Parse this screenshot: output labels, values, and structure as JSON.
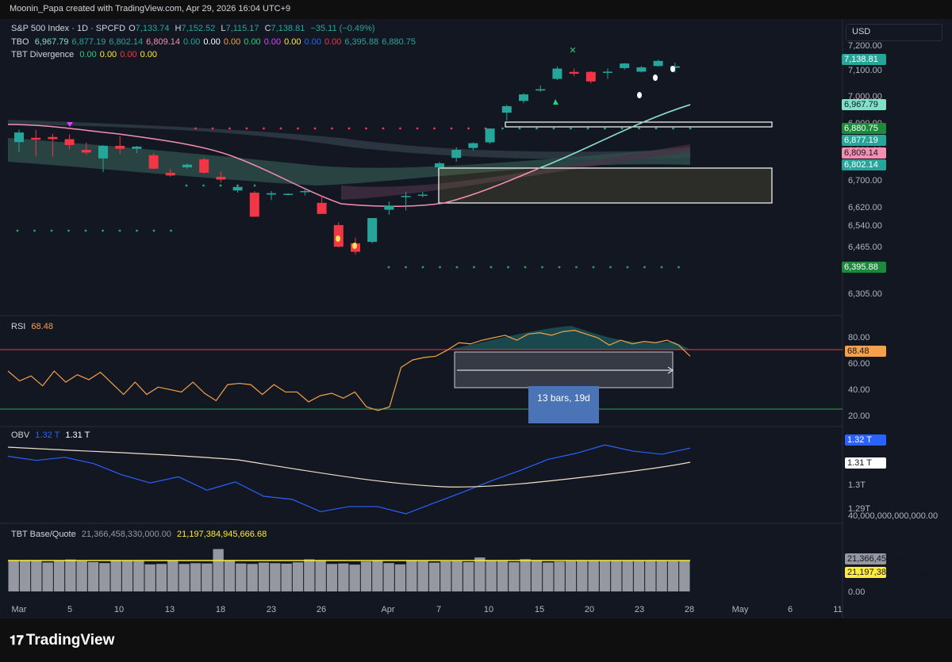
{
  "header": {
    "credit": "Moonin_Papa created with TradingView.com, Apr 29, 2026 16:04 UTC+9"
  },
  "footer": {
    "logo_text": "TradingView"
  },
  "currency_selector": {
    "label": "USD"
  },
  "colors": {
    "up": "#26a69a",
    "down": "#f23645",
    "bg": "#131722",
    "rsi": "#f5a04a",
    "obv": "#2962ff",
    "obv_ma": "#f0e0c8",
    "volume": "#9598a1",
    "quote": "#ffeb3b"
  },
  "legends": {
    "main": {
      "symbol": "S&P 500 Index · 1D · SPCFD",
      "o_label": "O",
      "o": "7,133.74",
      "h_label": "H",
      "h": "7,152.52",
      "l_label": "L",
      "l": "7,115.17",
      "c_label": "C",
      "c": "7,138.81",
      "chg": "−35.11 (−0.49%)"
    },
    "tbo": {
      "name": "TBO",
      "values": [
        "6,967.79",
        "6,877.19",
        "6,802.14",
        "6,809.14",
        "0.00",
        "0.00",
        "0.00",
        "0.00",
        "0.00",
        "0.00",
        "0.00",
        "0.00",
        "6,395.88",
        "6,880.75"
      ]
    },
    "div": {
      "name": "TBT Divergence",
      "values": [
        "0.00",
        "0.00",
        "0.00",
        "0.00"
      ]
    },
    "rsi": {
      "name": "RSI",
      "value": "68.48"
    },
    "obv": {
      "name": "OBV",
      "v1": "1.32 T",
      "v2": "1.31 T"
    },
    "vol": {
      "name": "TBT Base/Quote",
      "v1": "21,366,458,330,000.00",
      "v2": "21,197,384,945,666.68"
    }
  },
  "measure_box": {
    "label": "13 bars, 19d"
  },
  "chart_data": [
    {
      "type": "candlestick",
      "panel": "price",
      "x": [
        "Mar 3",
        "Mar 4",
        "Mar 5",
        "Mar 6",
        "Mar 9",
        "Mar 10",
        "Mar 11",
        "Mar 12",
        "Mar 13",
        "Mar 16",
        "Mar 17",
        "Mar 18",
        "Mar 19",
        "Mar 20",
        "Mar 23",
        "Mar 24",
        "Mar 25",
        "Mar 26",
        "Mar 27",
        "Mar 30",
        "Mar 31",
        "Apr 1",
        "Apr 2",
        "Apr 6",
        "Apr 7",
        "Apr 8",
        "Apr 9",
        "Apr 10",
        "Apr 13",
        "Apr 14",
        "Apr 15",
        "Apr 16",
        "Apr 17",
        "Apr 20",
        "Apr 21",
        "Apr 22",
        "Apr 23",
        "Apr 24",
        "Apr 27",
        "Apr 28"
      ],
      "ohlc": [
        [
          6849,
          6895,
          6812,
          6885
        ],
        [
          6865,
          6895,
          6795,
          6858
        ],
        [
          6868,
          6880,
          6795,
          6860
        ],
        [
          6860,
          6878,
          6822,
          6838
        ],
        [
          6820,
          6848,
          6802,
          6810
        ],
        [
          6788,
          6837,
          6738,
          6835
        ],
        [
          6835,
          6872,
          6805,
          6824
        ],
        [
          6824,
          6835,
          6808,
          6832
        ],
        [
          6800,
          6808,
          6748,
          6750
        ],
        [
          6735,
          6750,
          6720,
          6725
        ],
        [
          6755,
          6770,
          6750,
          6765
        ],
        [
          6785,
          6790,
          6732,
          6735
        ],
        [
          6720,
          6740,
          6700,
          6710
        ],
        [
          6670,
          6690,
          6662,
          6683
        ],
        [
          6662,
          6668,
          6575,
          6575
        ],
        [
          6655,
          6668,
          6635,
          6660
        ],
        [
          6655,
          6660,
          6652,
          6658
        ],
        [
          6665,
          6680,
          6652,
          6668
        ],
        [
          6625,
          6652,
          6585,
          6585
        ],
        [
          6545,
          6555,
          6465,
          6468
        ],
        [
          6480,
          6500,
          6440,
          6450
        ],
        [
          6485,
          6570,
          6480,
          6570
        ],
        [
          6600,
          6630,
          6582,
          6615
        ],
        [
          6648,
          6665,
          6598,
          6650
        ],
        [
          6655,
          6665,
          6645,
          6655
        ],
        [
          6755,
          6775,
          6748,
          6770
        ],
        [
          6790,
          6830,
          6776,
          6820
        ],
        [
          6827,
          6848,
          6818,
          6845
        ],
        [
          6848,
          6900,
          6842,
          6900
        ],
        [
          6960,
          6990,
          6930,
          6985
        ],
        [
          7005,
          7035,
          6996,
          7030
        ],
        [
          7045,
          7065,
          7040,
          7050
        ],
        [
          7090,
          7138,
          7085,
          7130
        ],
        [
          7117,
          7130,
          7100,
          7110
        ],
        [
          7117,
          7120,
          7072,
          7080
        ],
        [
          7115,
          7130,
          7090,
          7118
        ],
        [
          7132,
          7152,
          7126,
          7150
        ],
        [
          7118,
          7140,
          7115,
          7135
        ],
        [
          7140,
          7165,
          7138,
          7160
        ],
        [
          7133,
          7153,
          7115,
          7139
        ]
      ],
      "x_ticks": [
        "Mar",
        "5",
        "10",
        "13",
        "18",
        "23",
        "26",
        "Apr",
        "7",
        "10",
        "15",
        "20",
        "23",
        "28",
        "May",
        "6",
        "11"
      ],
      "y_ticks": [
        "7,200.00",
        "7,100.00",
        "7,000.00",
        "6,900.00",
        "6,800.00",
        "6,700.00",
        "6,620.00",
        "6,540.00",
        "6,465.00",
        "6,395.00",
        "6,305.00"
      ],
      "scale": "log",
      "price_labels": [
        "7,138.81",
        "6,967.79",
        "6,880.75",
        "6,877.19",
        "6,809.14",
        "6,802.14",
        "6,395.88"
      ]
    },
    {
      "type": "line",
      "panel": "rsi",
      "y_ticks": [
        "80.00",
        "60.00",
        "40.00",
        "20.00"
      ],
      "ylim": [
        10,
        100
      ],
      "levels": [
        69.5,
        25
      ],
      "values": [
        55,
        47,
        51,
        43,
        55,
        46,
        52,
        48,
        54,
        45,
        36,
        46,
        36,
        42,
        40,
        38,
        46,
        37,
        31,
        44,
        45,
        44,
        36,
        44,
        38,
        38,
        30,
        35,
        37,
        33,
        38,
        26,
        23,
        26,
        58,
        64,
        66,
        67,
        72,
        78,
        77,
        80,
        82,
        84,
        80,
        85,
        86,
        84,
        87,
        88,
        85,
        82,
        76,
        80,
        77,
        79,
        78,
        80,
        76,
        67
      ]
    },
    {
      "type": "line",
      "panel": "obv",
      "y_ticks": [
        "1.3T",
        "1.29T"
      ],
      "series": [
        {
          "values": [
            1.3175,
            1.3155,
            1.317,
            1.314,
            1.3085,
            1.3045,
            1.3075,
            1.301,
            1.305,
            1.298,
            1.2965,
            1.2905,
            1.293,
            1.293,
            1.2895,
            1.2948,
            1.3,
            1.3055,
            1.3105,
            1.316,
            1.319,
            1.323,
            1.32,
            1.3185,
            1.3215
          ]
        },
        {
          "values": [
            1.3165,
            1.316,
            1.315,
            1.3135,
            1.312,
            1.3095,
            1.3065,
            1.304,
            1.3015,
            1.2998,
            1.299,
            1.2992,
            1.3,
            1.3015,
            1.3035,
            1.306,
            1.3085,
            1.31
          ]
        }
      ]
    },
    {
      "type": "bar",
      "panel": "volume",
      "y_ticks": [
        "40,000,000,000,000.00",
        "0.00"
      ],
      "values": [
        21.5,
        22.0,
        21.8,
        20.3,
        21.6,
        22.4,
        21.3,
        20.6,
        19.9,
        22.0,
        21.9,
        21.3,
        19.0,
        19.3,
        21.9,
        19.3,
        19.8,
        19.6,
        29.7,
        21.9,
        19.6,
        19.3,
        20.2,
        19.8,
        19.5,
        20.4,
        22.5,
        21.7,
        19.3,
        19.6,
        18.8,
        21.0,
        21.6,
        19.9,
        19.0,
        21.4,
        21.3,
        20.2,
        21.2,
        21.3,
        20.6,
        23.8,
        21.4,
        21.6,
        20.5,
        22.6,
        22.0,
        20.3,
        21.0,
        21.3,
        21.6,
        21.6,
        21.6,
        21.4,
        21.8,
        21.4,
        21.7,
        21.5,
        21.3,
        21.4
      ],
      "quote_level": 21.2
    }
  ]
}
